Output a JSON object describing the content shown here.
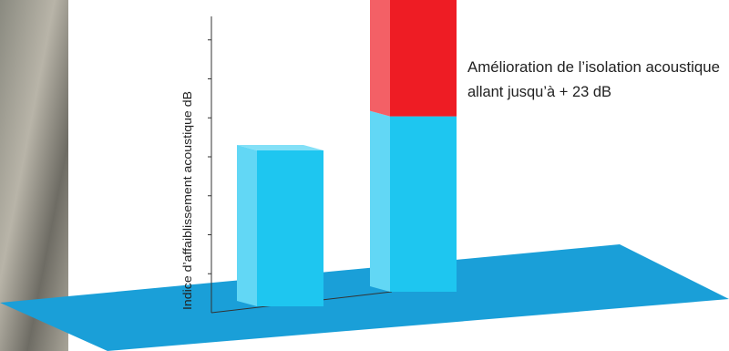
{
  "chart_data": {
    "type": "bar",
    "y_label": "Indice d’affaiblissement acoustique dB",
    "annotation": [
      "Amélioration de l’isolation acoustique",
      "allant jusqu’à + 23 dB"
    ],
    "categories": [
      null,
      null
    ],
    "series": [
      {
        "color": "#1ec6f0",
        "values": [
          4.0,
          4.5
        ]
      },
      {
        "color": "#ee1c24",
        "values": [
          null,
          3.1
        ]
      }
    ],
    "stacked": true,
    "ylim": [
      0,
      8
    ],
    "yticks": [
      1,
      2,
      3,
      4,
      5,
      6,
      7
    ],
    "grid": false
  }
}
